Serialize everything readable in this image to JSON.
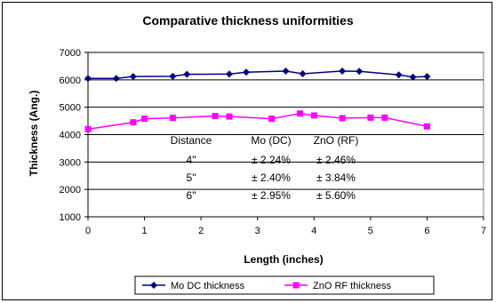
{
  "chart_data": {
    "type": "line",
    "title": "Comparative thickness uniformities",
    "xlabel": "Length (inches)",
    "ylabel": "Thickness (Ang.)",
    "xlim": [
      0,
      7
    ],
    "ylim": [
      1000,
      7000
    ],
    "x_ticks": [
      "0",
      "1",
      "2",
      "3",
      "4",
      "5",
      "6",
      "7"
    ],
    "y_ticks": [
      "1000",
      "2000",
      "3000",
      "4000",
      "5000",
      "6000",
      "7000"
    ],
    "grid": "horizontal",
    "legend_position": "bottom",
    "series": [
      {
        "name": "Mo DC thickness",
        "color": "#000080",
        "marker": "diamond",
        "points": [
          [
            0,
            6050
          ],
          [
            0.5,
            6050
          ],
          [
            0.8,
            6120
          ],
          [
            1.5,
            6130
          ],
          [
            1.75,
            6200
          ],
          [
            2.5,
            6210
          ],
          [
            2.8,
            6280
          ],
          [
            3.5,
            6320
          ],
          [
            3.8,
            6220
          ],
          [
            4.5,
            6320
          ],
          [
            4.8,
            6310
          ],
          [
            5.5,
            6180
          ],
          [
            5.75,
            6100
          ],
          [
            6,
            6120
          ]
        ]
      },
      {
        "name": "ZnO RF thickness",
        "color": "#ff00ff",
        "marker": "square",
        "points": [
          [
            0,
            4200
          ],
          [
            0.8,
            4450
          ],
          [
            1,
            4580
          ],
          [
            1.5,
            4610
          ],
          [
            2.25,
            4680
          ],
          [
            2.5,
            4660
          ],
          [
            3.25,
            4580
          ],
          [
            3.75,
            4770
          ],
          [
            4,
            4700
          ],
          [
            4.5,
            4600
          ],
          [
            5,
            4620
          ],
          [
            5.25,
            4620
          ],
          [
            6,
            4300
          ]
        ]
      }
    ],
    "annotation_table": {
      "headers": [
        "Distance",
        "Mo (DC)",
        "ZnO (RF)"
      ],
      "rows": [
        [
          "4\"",
          "± 2.24%",
          "± 2.46%"
        ],
        [
          "5\"",
          "± 2.40%",
          "± 3.84%"
        ],
        [
          "6\"",
          "± 2.95%",
          "± 5.60%"
        ]
      ]
    }
  }
}
